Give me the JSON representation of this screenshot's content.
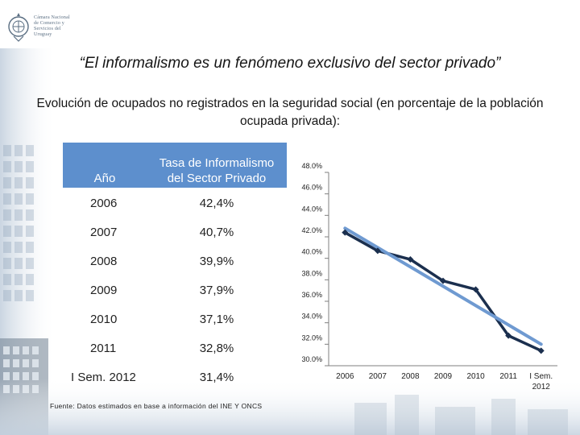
{
  "header": {
    "logo_text": "Cámara Nacional\nde Comercio y\nServicios del\nUruguay"
  },
  "slide": {
    "quote": "“El informalismo es un fenómeno exclusivo del sector privado”",
    "subtitle": "Evolución de ocupados no registrados en la seguridad social (en porcentaje de la población ocupada privada):"
  },
  "table": {
    "headers": [
      "Año",
      "Tasa de Informalismo del Sector Privado"
    ],
    "rows": [
      {
        "year": "2006",
        "rate": "42,4%"
      },
      {
        "year": "2007",
        "rate": "40,7%"
      },
      {
        "year": "2008",
        "rate": "39,9%"
      },
      {
        "year": "2009",
        "rate": "37,9%"
      },
      {
        "year": "2010",
        "rate": "37,1%"
      },
      {
        "year": "2011",
        "rate": "32,8%"
      },
      {
        "year": "I Sem. 2012",
        "rate": "31,4%"
      }
    ]
  },
  "footer": {
    "source": "Fuente: Datos estimados en base a información del INE Y ONCS"
  },
  "colors": {
    "header_blue": "#5d8fcd",
    "series_dark": "#1b2f4e",
    "trend_blue": "#6f9ad1"
  },
  "chart_data": {
    "type": "line",
    "title": "",
    "xlabel": "",
    "ylabel": "",
    "categories": [
      "2006",
      "2007",
      "2008",
      "2009",
      "2010",
      "2011",
      "I Sem. 2012"
    ],
    "series": [
      {
        "name": "Tasa de Informalismo",
        "values": [
          42.4,
          40.7,
          39.9,
          37.9,
          37.1,
          32.8,
          31.4
        ],
        "marker": "diamond"
      }
    ],
    "trendline": {
      "type": "linear",
      "from": 42.8,
      "to": 32.0
    },
    "ylim": [
      30.0,
      48.0
    ],
    "yticks": [
      30.0,
      32.0,
      34.0,
      36.0,
      38.0,
      40.0,
      42.0,
      44.0,
      46.0,
      48.0
    ],
    "ytick_labels": [
      "30.0%",
      "32.0%",
      "34.0%",
      "36.0%",
      "38.0%",
      "40.0%",
      "42.0%",
      "44.0%",
      "46.0%",
      "48.0%"
    ],
    "xtick_labels": [
      [
        "2006"
      ],
      [
        "2007"
      ],
      [
        "2008"
      ],
      [
        "2009"
      ],
      [
        "2010"
      ],
      [
        "2011"
      ],
      [
        "I Sem.",
        "2012"
      ]
    ],
    "grid": false,
    "legend": "none"
  }
}
